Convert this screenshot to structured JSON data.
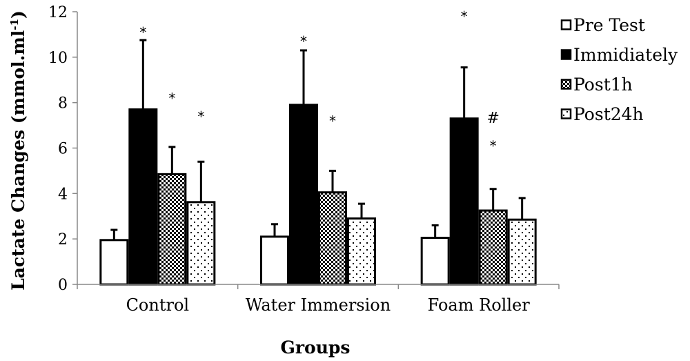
{
  "chart_data": {
    "type": "bar",
    "title": "",
    "xlabel": "Groups",
    "ylabel": "Lactate Changes (mmol.ml",
    "ylabel_superscript": "-1",
    "ylabel_close": ")",
    "ylim": [
      0,
      12
    ],
    "yticks": [
      0,
      2,
      4,
      6,
      8,
      10,
      12
    ],
    "grid": false,
    "legend_position": "right",
    "categories": [
      "Control",
      "Water Immersion",
      "Foam Roller"
    ],
    "series": [
      {
        "name": "Pre Test",
        "pattern": "white",
        "values": [
          1.95,
          2.1,
          2.05
        ],
        "errors": [
          0.45,
          0.55,
          0.55
        ]
      },
      {
        "name": "Immidiately",
        "pattern": "black",
        "values": [
          7.7,
          7.9,
          7.3
        ],
        "errors": [
          3.05,
          2.4,
          2.25
        ]
      },
      {
        "name": "Post1h",
        "pattern": "checker",
        "values": [
          4.85,
          4.05,
          3.25
        ],
        "errors": [
          1.2,
          0.95,
          0.95
        ]
      },
      {
        "name": "Post24h",
        "pattern": "dots",
        "values": [
          3.62,
          2.9,
          2.85
        ],
        "errors": [
          1.78,
          0.65,
          0.95
        ]
      }
    ],
    "annotations": [
      {
        "text": "*",
        "category": 0,
        "series": 1,
        "y": 11.3
      },
      {
        "text": "*",
        "category": 0,
        "series": 2,
        "y": 8.4
      },
      {
        "text": "*",
        "category": 0,
        "series": 3,
        "y": 7.6
      },
      {
        "text": "*",
        "category": 1,
        "series": 1,
        "y": 10.9
      },
      {
        "text": "*",
        "category": 1,
        "series": 2,
        "y": 7.4
      },
      {
        "text": "*",
        "category": 2,
        "series": 1,
        "y": 12.0
      },
      {
        "text": "#",
        "category": 2,
        "series": 2,
        "y": 7.35
      },
      {
        "text": "*",
        "category": 2,
        "series": 2,
        "y": 6.3
      }
    ]
  }
}
